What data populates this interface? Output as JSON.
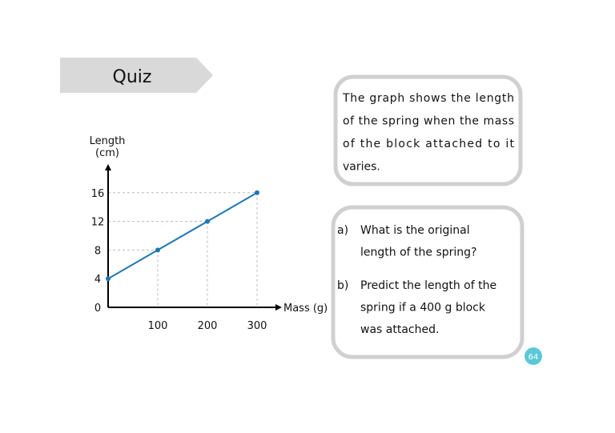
{
  "header": {
    "title": "Quiz"
  },
  "intro": {
    "lines": [
      "The graph shows the length",
      "of the spring when the mass",
      "of the block attached to it",
      "varies."
    ]
  },
  "questions": [
    {
      "label": "a)",
      "lines": [
        "What is the original",
        "length of the spring?"
      ]
    },
    {
      "label": "b)",
      "lines": [
        "Predict the length of the",
        "spring if a 400 g block",
        "was attached."
      ]
    }
  ],
  "page_number": "64",
  "chart_data": {
    "type": "line",
    "ylabel": [
      "Length",
      "(cm)"
    ],
    "xlabel": "Mass (g)",
    "x": [
      0,
      100,
      200,
      300
    ],
    "values": [
      4,
      8,
      12,
      16
    ],
    "color": "#1f77b4",
    "xlim": [
      0,
      350
    ],
    "ylim": [
      0,
      20
    ],
    "xticks": [
      100,
      200,
      300
    ],
    "yticks": [
      0,
      4,
      8,
      12,
      16
    ],
    "guides": true
  }
}
